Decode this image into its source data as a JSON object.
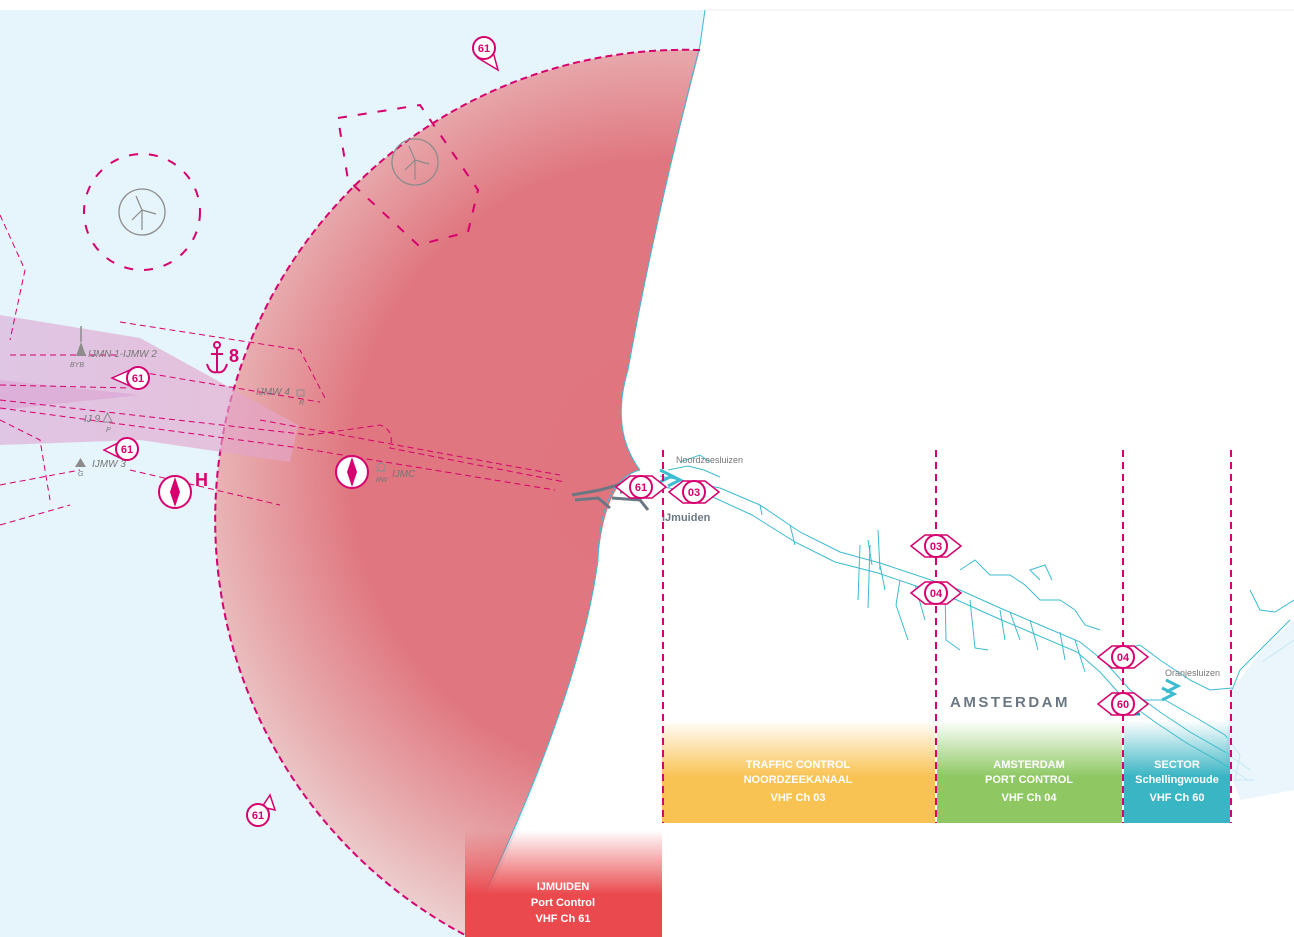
{
  "colors": {
    "sea": "#e6f4fb",
    "zone_red": "#e0757f",
    "magenta": "#d6006e",
    "canal": "#3bbcd1",
    "orange": "#f9c353",
    "green": "#8fc863",
    "teal": "#3ab5c4",
    "red_box": "#ea4a4e",
    "symbol_grey": "#8c8c8c"
  },
  "places": {
    "ijmuiden": "IJmuiden",
    "amsterdam": "AMSTERDAM",
    "noordzeesluizen": "Noordzeesluizen",
    "oranjesluizen": "Oranjesluizen"
  },
  "buoys": {
    "ijmn1_ijmw2": "IJMN 1-IJMW 2",
    "byb": "BYB",
    "ijmw4": "IJMW 4",
    "r": "R",
    "ij9": "IJ 9",
    "p": "P",
    "ijmw3": "IJMW 3",
    "g": "G",
    "ijmc": "IJMC",
    "rw": "RW"
  },
  "anchorage": {
    "number": "8",
    "icon": "anchor-icon"
  },
  "pilot_station": {
    "letter": "H",
    "icon": "compass-diamond-icon"
  },
  "wind_farm_icon": "wind-turbine-icon",
  "channel_markers": [
    {
      "id": "top",
      "label": "61"
    },
    {
      "id": "west-upper",
      "label": "61"
    },
    {
      "id": "west-lower",
      "label": "61"
    },
    {
      "id": "south",
      "label": "61"
    },
    {
      "id": "harbour",
      "label": "61"
    },
    {
      "id": "noordzeesluizen",
      "label": "03"
    },
    {
      "id": "boundary-03",
      "label": "03"
    },
    {
      "id": "boundary-04",
      "label": "04"
    },
    {
      "id": "boundary-04b",
      "label": "04"
    },
    {
      "id": "oranjesluizen",
      "label": "60"
    }
  ],
  "sectors": [
    {
      "id": "traffic",
      "line1": "TRAFFIC CONTROL",
      "line2": "NOORDZEEKANAAL",
      "line3": "VHF Ch 03"
    },
    {
      "id": "amsterdam",
      "line1": "AMSTERDAM",
      "line2": "PORT CONTROL",
      "line3": "VHF Ch 04"
    },
    {
      "id": "schellingwoude",
      "line1": "SECTOR",
      "line2": "Schellingwoude",
      "line3": "VHF Ch 60"
    },
    {
      "id": "ijmuiden",
      "line1": "IJMUIDEN",
      "line2": "Port Control",
      "line3": "VHF Ch 61"
    }
  ]
}
